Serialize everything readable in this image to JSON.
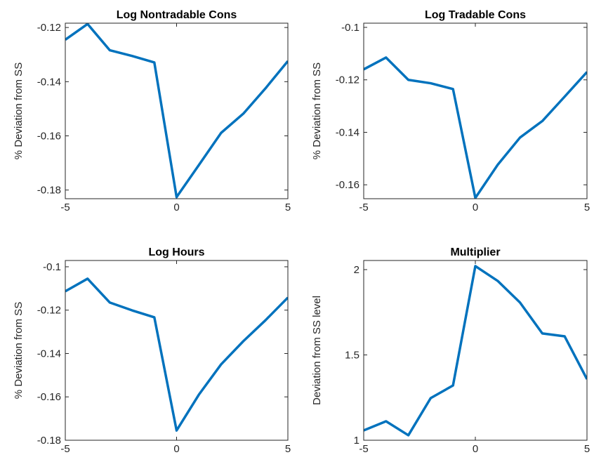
{
  "chart_data": [
    {
      "type": "line",
      "title": "Log Nontradable Cons",
      "ylabel": "% Deviation from SS",
      "color": "#0072bd",
      "x": [
        -5,
        -4,
        -3,
        -2,
        -1,
        0,
        1,
        2,
        3,
        4,
        5
      ],
      "values": [
        -0.1245,
        -0.1187,
        -0.1284,
        -0.1305,
        -0.1329,
        -0.1826,
        -0.1708,
        -0.1589,
        -0.1518,
        -0.1424,
        -0.1324
      ],
      "xlim": [
        -5,
        5
      ],
      "xticks": [
        -5,
        0,
        5
      ],
      "ylim": [
        -0.1832,
        -0.1184
      ],
      "yticks": [
        -0.18,
        -0.16,
        -0.14,
        -0.12
      ]
    },
    {
      "type": "line",
      "title": "Log Tradable Cons",
      "ylabel": "% Deviation from SS",
      "color": "#0072bd",
      "x": [
        -5,
        -4,
        -3,
        -2,
        -1,
        0,
        1,
        2,
        3,
        4,
        5
      ],
      "values": [
        -0.116,
        -0.1115,
        -0.12,
        -0.1213,
        -0.1235,
        -0.165,
        -0.1524,
        -0.142,
        -0.1357,
        -0.1264,
        -0.117
      ],
      "xlim": [
        -5,
        5
      ],
      "xticks": [
        -5,
        0,
        5
      ],
      "ylim": [
        -0.1653,
        -0.0984
      ],
      "yticks": [
        -0.16,
        -0.14,
        -0.12,
        -0.1
      ]
    },
    {
      "type": "line",
      "title": "Log Hours",
      "ylabel": "% Deviation from SS",
      "color": "#0072bd",
      "x": [
        -5,
        -4,
        -3,
        -2,
        -1,
        0,
        1,
        2,
        3,
        4,
        5
      ],
      "values": [
        -0.1113,
        -0.1055,
        -0.1165,
        -0.1201,
        -0.1233,
        -0.1755,
        -0.159,
        -0.145,
        -0.1343,
        -0.1246,
        -0.1142
      ],
      "xlim": [
        -5,
        5
      ],
      "xticks": [
        -5,
        0,
        5
      ],
      "ylim": [
        -0.18,
        -0.0971
      ],
      "yticks": [
        -0.18,
        -0.16,
        -0.14,
        -0.12,
        -0.1
      ]
    },
    {
      "type": "line",
      "title": "Multiplier",
      "ylabel": "Deviation from SS level",
      "color": "#0072bd",
      "x": [
        -5,
        -4,
        -3,
        -2,
        -1,
        0,
        1,
        2,
        3,
        4,
        5
      ],
      "values": [
        1.0576,
        1.111,
        1.029,
        1.247,
        1.321,
        2.0206,
        1.934,
        1.807,
        1.626,
        1.609,
        1.358
      ],
      "xlim": [
        -5,
        5
      ],
      "xticks": [
        -5,
        0,
        5
      ],
      "ylim": [
        1,
        2.0535
      ],
      "yticks": [
        1,
        1.5,
        2
      ]
    }
  ]
}
